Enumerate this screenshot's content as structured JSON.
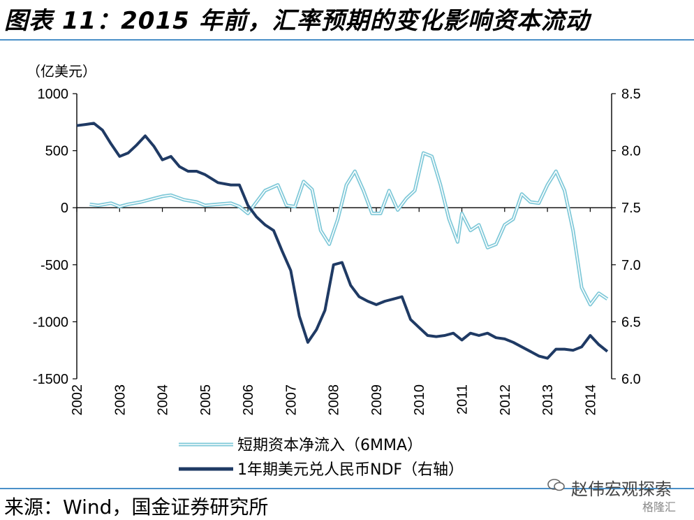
{
  "title": "图表 11：2015 年前，汇率预期的变化影响资本流动",
  "source": "来源：Wind，国金证券研究所",
  "watermark": "赵伟宏观探索",
  "brand": "格隆汇",
  "colors": {
    "left_series": "#7ec8d8",
    "right_series": "#1f3a64",
    "rule": "#4a90c8"
  },
  "chart_data": {
    "type": "line",
    "unit_label": "（亿美元）",
    "left_axis": {
      "ylim": [
        -1500,
        1000
      ],
      "ticks": [
        "1000",
        "500",
        "0",
        "-500",
        "-1000",
        "-1500"
      ]
    },
    "right_axis": {
      "ylim": [
        6.0,
        8.5
      ],
      "ticks": [
        "8.5",
        "8.0",
        "7.5",
        "7.0",
        "6.5",
        "6.0"
      ]
    },
    "x_ticks": [
      "2002",
      "2003",
      "2004",
      "2005",
      "2006",
      "2007",
      "2008",
      "2009",
      "2010",
      "2011",
      "2012",
      "2013",
      "2014"
    ],
    "xlim": [
      2002.0,
      2014.5
    ],
    "legend": [
      "短期资本净流入（6MMA）",
      "1年期美元兑人民币NDF（右轴）"
    ],
    "series": [
      {
        "name": "短期资本净流入（6MMA）",
        "axis": "left",
        "x": [
          2002.3,
          2002.5,
          2002.8,
          2003.0,
          2003.2,
          2003.5,
          2003.8,
          2004.0,
          2004.2,
          2004.5,
          2004.8,
          2005.0,
          2005.3,
          2005.6,
          2005.8,
          2006.0,
          2006.2,
          2006.4,
          2006.7,
          2006.9,
          2007.1,
          2007.3,
          2007.5,
          2007.7,
          2007.9,
          2008.1,
          2008.3,
          2008.5,
          2008.7,
          2008.9,
          2009.1,
          2009.3,
          2009.5,
          2009.7,
          2009.9,
          2010.1,
          2010.3,
          2010.5,
          2010.7,
          2010.9,
          2011.0,
          2011.2,
          2011.4,
          2011.6,
          2011.8,
          2012.0,
          2012.2,
          2012.4,
          2012.6,
          2012.8,
          2013.0,
          2013.2,
          2013.4,
          2013.6,
          2013.8,
          2014.0,
          2014.2,
          2014.4
        ],
        "values": [
          30,
          20,
          40,
          10,
          30,
          50,
          80,
          100,
          110,
          70,
          50,
          20,
          30,
          40,
          10,
          -50,
          50,
          150,
          200,
          20,
          10,
          230,
          160,
          -200,
          -320,
          -100,
          200,
          320,
          150,
          -50,
          -50,
          150,
          -20,
          80,
          150,
          480,
          450,
          200,
          -100,
          -300,
          -50,
          -200,
          -150,
          -350,
          -320,
          -150,
          -100,
          120,
          50,
          40,
          200,
          320,
          150,
          -200,
          -700,
          -850,
          -750,
          -800
        ]
      },
      {
        "name": "1年期美元兑人民币NDF（右轴）",
        "axis": "right",
        "x": [
          2002.0,
          2002.2,
          2002.4,
          2002.6,
          2002.8,
          2003.0,
          2003.2,
          2003.4,
          2003.6,
          2003.8,
          2004.0,
          2004.2,
          2004.4,
          2004.6,
          2004.8,
          2005.0,
          2005.3,
          2005.6,
          2005.8,
          2006.0,
          2006.2,
          2006.4,
          2006.6,
          2006.8,
          2007.0,
          2007.2,
          2007.4,
          2007.6,
          2007.8,
          2008.0,
          2008.2,
          2008.4,
          2008.6,
          2008.8,
          2009.0,
          2009.2,
          2009.4,
          2009.6,
          2009.8,
          2010.0,
          2010.2,
          2010.4,
          2010.6,
          2010.8,
          2011.0,
          2011.2,
          2011.4,
          2011.6,
          2011.8,
          2012.0,
          2012.2,
          2012.4,
          2012.6,
          2012.8,
          2013.0,
          2013.2,
          2013.4,
          2013.6,
          2013.8,
          2014.0,
          2014.2,
          2014.4
        ],
        "values": [
          8.22,
          8.23,
          8.24,
          8.18,
          8.06,
          7.95,
          7.98,
          8.05,
          8.13,
          8.04,
          7.92,
          7.95,
          7.86,
          7.82,
          7.82,
          7.79,
          7.72,
          7.7,
          7.7,
          7.52,
          7.42,
          7.35,
          7.3,
          7.12,
          6.95,
          6.55,
          6.32,
          6.43,
          6.6,
          7.0,
          7.02,
          6.82,
          6.72,
          6.68,
          6.65,
          6.68,
          6.7,
          6.72,
          6.52,
          6.45,
          6.38,
          6.37,
          6.38,
          6.4,
          6.34,
          6.4,
          6.38,
          6.4,
          6.36,
          6.35,
          6.32,
          6.28,
          6.24,
          6.2,
          6.18,
          6.26,
          6.26,
          6.25,
          6.28,
          6.38,
          6.3,
          6.24
        ]
      }
    ]
  }
}
